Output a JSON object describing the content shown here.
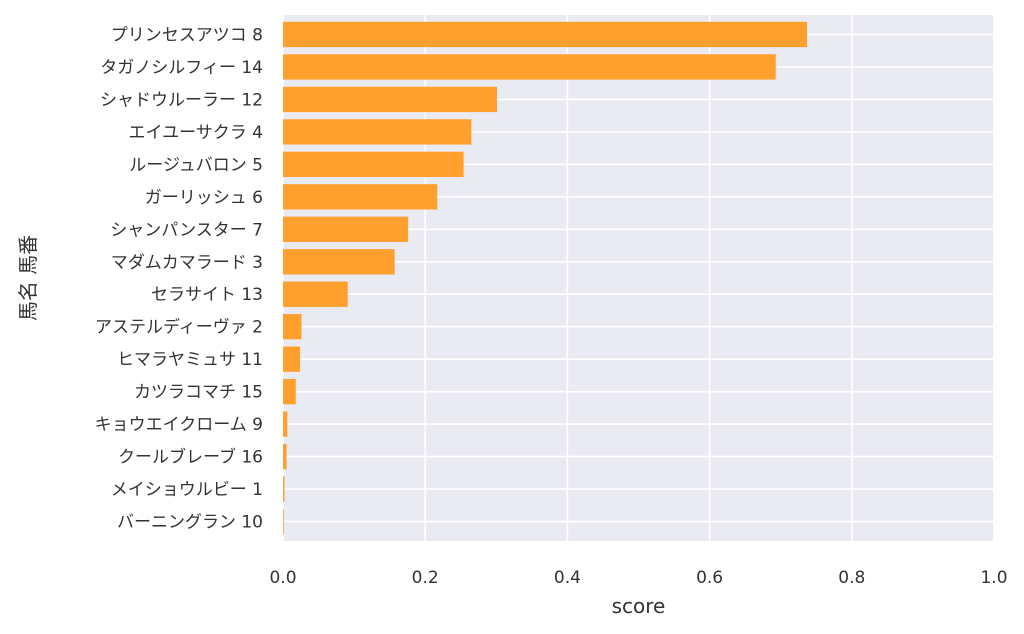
{
  "chart_data": {
    "type": "bar",
    "orientation": "horizontal",
    "title": "",
    "xlabel": "score",
    "ylabel": "馬名 馬番",
    "xlim": [
      0,
      1.0
    ],
    "xticks": [
      "0.0",
      "0.2",
      "0.4",
      "0.6",
      "0.8",
      "1.0"
    ],
    "xtick_values": [
      0,
      0.2,
      0.4,
      0.6,
      0.8,
      1.0
    ],
    "grid": true,
    "categories": [
      "プリンセスアツコ 8",
      "タガノシルフィー 14",
      "シャドウルーラー 12",
      "エイユーサクラ 4",
      "ルージュバロン 5",
      "ガーリッシュ 6",
      "シャンパンスター 7",
      "マダムカマラード 3",
      "セラサイト 13",
      "アステルディーヴァ 2",
      "ヒマラヤミュサ 11",
      "カツラコマチ 15",
      "キョウエイクローム 9",
      "クールブレーブ 16",
      "メイショウルビー 1",
      "バーニングラン 10"
    ],
    "values": [
      0.737,
      0.693,
      0.301,
      0.265,
      0.254,
      0.217,
      0.176,
      0.157,
      0.091,
      0.026,
      0.024,
      0.018,
      0.006,
      0.005,
      0.002,
      0.001
    ],
    "colors": {
      "bar": "#ff9f2e",
      "plot_background": "#eaeaf2",
      "grid": "#ffffff",
      "text": "#333333"
    }
  }
}
